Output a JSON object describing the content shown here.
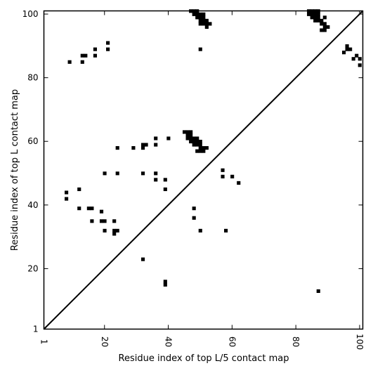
{
  "chart_data": {
    "type": "scatter",
    "title": "",
    "xlabel": "Residue index of top L/5 contact map",
    "ylabel": "Residue index of top L contact map",
    "xlim": [
      1,
      101
    ],
    "ylim": [
      1,
      101
    ],
    "x_ticks": [
      1,
      20,
      40,
      60,
      80,
      100
    ],
    "y_ticks": [
      1,
      20,
      40,
      60,
      80,
      100
    ],
    "x_tick_labels": [
      "1",
      "20",
      "40",
      "60",
      "80",
      "100"
    ],
    "y_tick_labels": [
      "1",
      "20",
      "40",
      "60",
      "80",
      "100"
    ],
    "grid": false,
    "marker": "square",
    "marker_color": "#000000",
    "diagonal": {
      "from": [
        1,
        1
      ],
      "to": [
        101,
        101
      ]
    },
    "points": [
      [
        9,
        85
      ],
      [
        13,
        85
      ],
      [
        13,
        87
      ],
      [
        14,
        87
      ],
      [
        17,
        87
      ],
      [
        17,
        89
      ],
      [
        21,
        89
      ],
      [
        21,
        91
      ],
      [
        50,
        89
      ],
      [
        95,
        88
      ],
      [
        96,
        89
      ],
      [
        97,
        89
      ],
      [
        96,
        90
      ],
      [
        98,
        86
      ],
      [
        99,
        87
      ],
      [
        100,
        86
      ],
      [
        100,
        84
      ],
      [
        47,
        101
      ],
      [
        48,
        101
      ],
      [
        49,
        101
      ],
      [
        48,
        100
      ],
      [
        49,
        100
      ],
      [
        50,
        100
      ],
      [
        51,
        100
      ],
      [
        49,
        99
      ],
      [
        50,
        99
      ],
      [
        51,
        99
      ],
      [
        50,
        98
      ],
      [
        51,
        98
      ],
      [
        52,
        98
      ],
      [
        50,
        97
      ],
      [
        51,
        97
      ],
      [
        52,
        97
      ],
      [
        53,
        97
      ],
      [
        52,
        96
      ],
      [
        84,
        101
      ],
      [
        85,
        101
      ],
      [
        86,
        101
      ],
      [
        87,
        101
      ],
      [
        84,
        100
      ],
      [
        85,
        100
      ],
      [
        86,
        100
      ],
      [
        87,
        100
      ],
      [
        85,
        99
      ],
      [
        86,
        99
      ],
      [
        87,
        99
      ],
      [
        86,
        98
      ],
      [
        87,
        98
      ],
      [
        88,
        98
      ],
      [
        88,
        97
      ],
      [
        89,
        97
      ],
      [
        89,
        96
      ],
      [
        90,
        96
      ],
      [
        88,
        95
      ],
      [
        89,
        95
      ],
      [
        89,
        99
      ],
      [
        45,
        63
      ],
      [
        46,
        63
      ],
      [
        47,
        63
      ],
      [
        46,
        62
      ],
      [
        47,
        62
      ],
      [
        46,
        61
      ],
      [
        47,
        61
      ],
      [
        48,
        61
      ],
      [
        49,
        61
      ],
      [
        47,
        60
      ],
      [
        48,
        60
      ],
      [
        49,
        60
      ],
      [
        50,
        60
      ],
      [
        48,
        59
      ],
      [
        49,
        59
      ],
      [
        50,
        59
      ],
      [
        50,
        58
      ],
      [
        51,
        58
      ],
      [
        52,
        58
      ],
      [
        49,
        57
      ],
      [
        50,
        57
      ],
      [
        51,
        57
      ],
      [
        40,
        61
      ],
      [
        36,
        61
      ],
      [
        36,
        59
      ],
      [
        32,
        59
      ],
      [
        33,
        59
      ],
      [
        32,
        58
      ],
      [
        29,
        58
      ],
      [
        24,
        58
      ],
      [
        20,
        50
      ],
      [
        24,
        50
      ],
      [
        32,
        50
      ],
      [
        36,
        50
      ],
      [
        36,
        48
      ],
      [
        39,
        48
      ],
      [
        39,
        45
      ],
      [
        57,
        51
      ],
      [
        57,
        49
      ],
      [
        60,
        49
      ],
      [
        62,
        47
      ],
      [
        8,
        44
      ],
      [
        8,
        42
      ],
      [
        12,
        45
      ],
      [
        12,
        39
      ],
      [
        15,
        39
      ],
      [
        16,
        39
      ],
      [
        19,
        38
      ],
      [
        16,
        35
      ],
      [
        19,
        35
      ],
      [
        20,
        35
      ],
      [
        23,
        35
      ],
      [
        20,
        32
      ],
      [
        23,
        32
      ],
      [
        24,
        32
      ],
      [
        23,
        31
      ],
      [
        48,
        39
      ],
      [
        48,
        36
      ],
      [
        50,
        32
      ],
      [
        58,
        32
      ],
      [
        32,
        23
      ],
      [
        39,
        16
      ],
      [
        39,
        15
      ],
      [
        87,
        13
      ]
    ]
  }
}
